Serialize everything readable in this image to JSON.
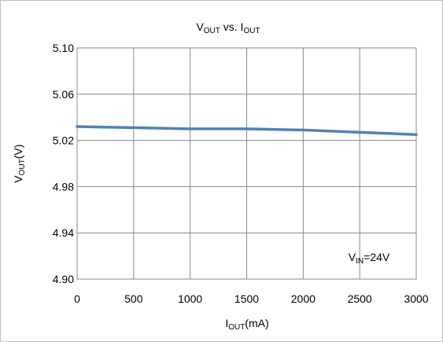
{
  "chart_data": {
    "type": "line",
    "title": {
      "main": "V",
      "main_sub": "OUT",
      "mid": " vs. I",
      "mid_sub": "OUT"
    },
    "xlabel": {
      "main": "I",
      "sub": "OUT",
      "tail": "(mA)"
    },
    "ylabel": {
      "main": "V",
      "sub": "OUT",
      "tail": "(V)"
    },
    "xlim": [
      0,
      3000
    ],
    "ylim": [
      4.9,
      5.1
    ],
    "xticks": [
      "0",
      "500",
      "1000",
      "1500",
      "2000",
      "2500",
      "3000"
    ],
    "yticks": [
      "5.10",
      "5.06",
      "5.02",
      "4.98",
      "4.94",
      "4.90"
    ],
    "grid": true,
    "series": [
      {
        "x": [
          0,
          500,
          1000,
          1500,
          2000,
          2500,
          3000
        ],
        "y": [
          5.032,
          5.031,
          5.03,
          5.03,
          5.029,
          5.027,
          5.025
        ],
        "color": "#4f81bd"
      }
    ],
    "annotation": {
      "main": "V",
      "sub": "IN",
      "tail": "=24V"
    }
  }
}
